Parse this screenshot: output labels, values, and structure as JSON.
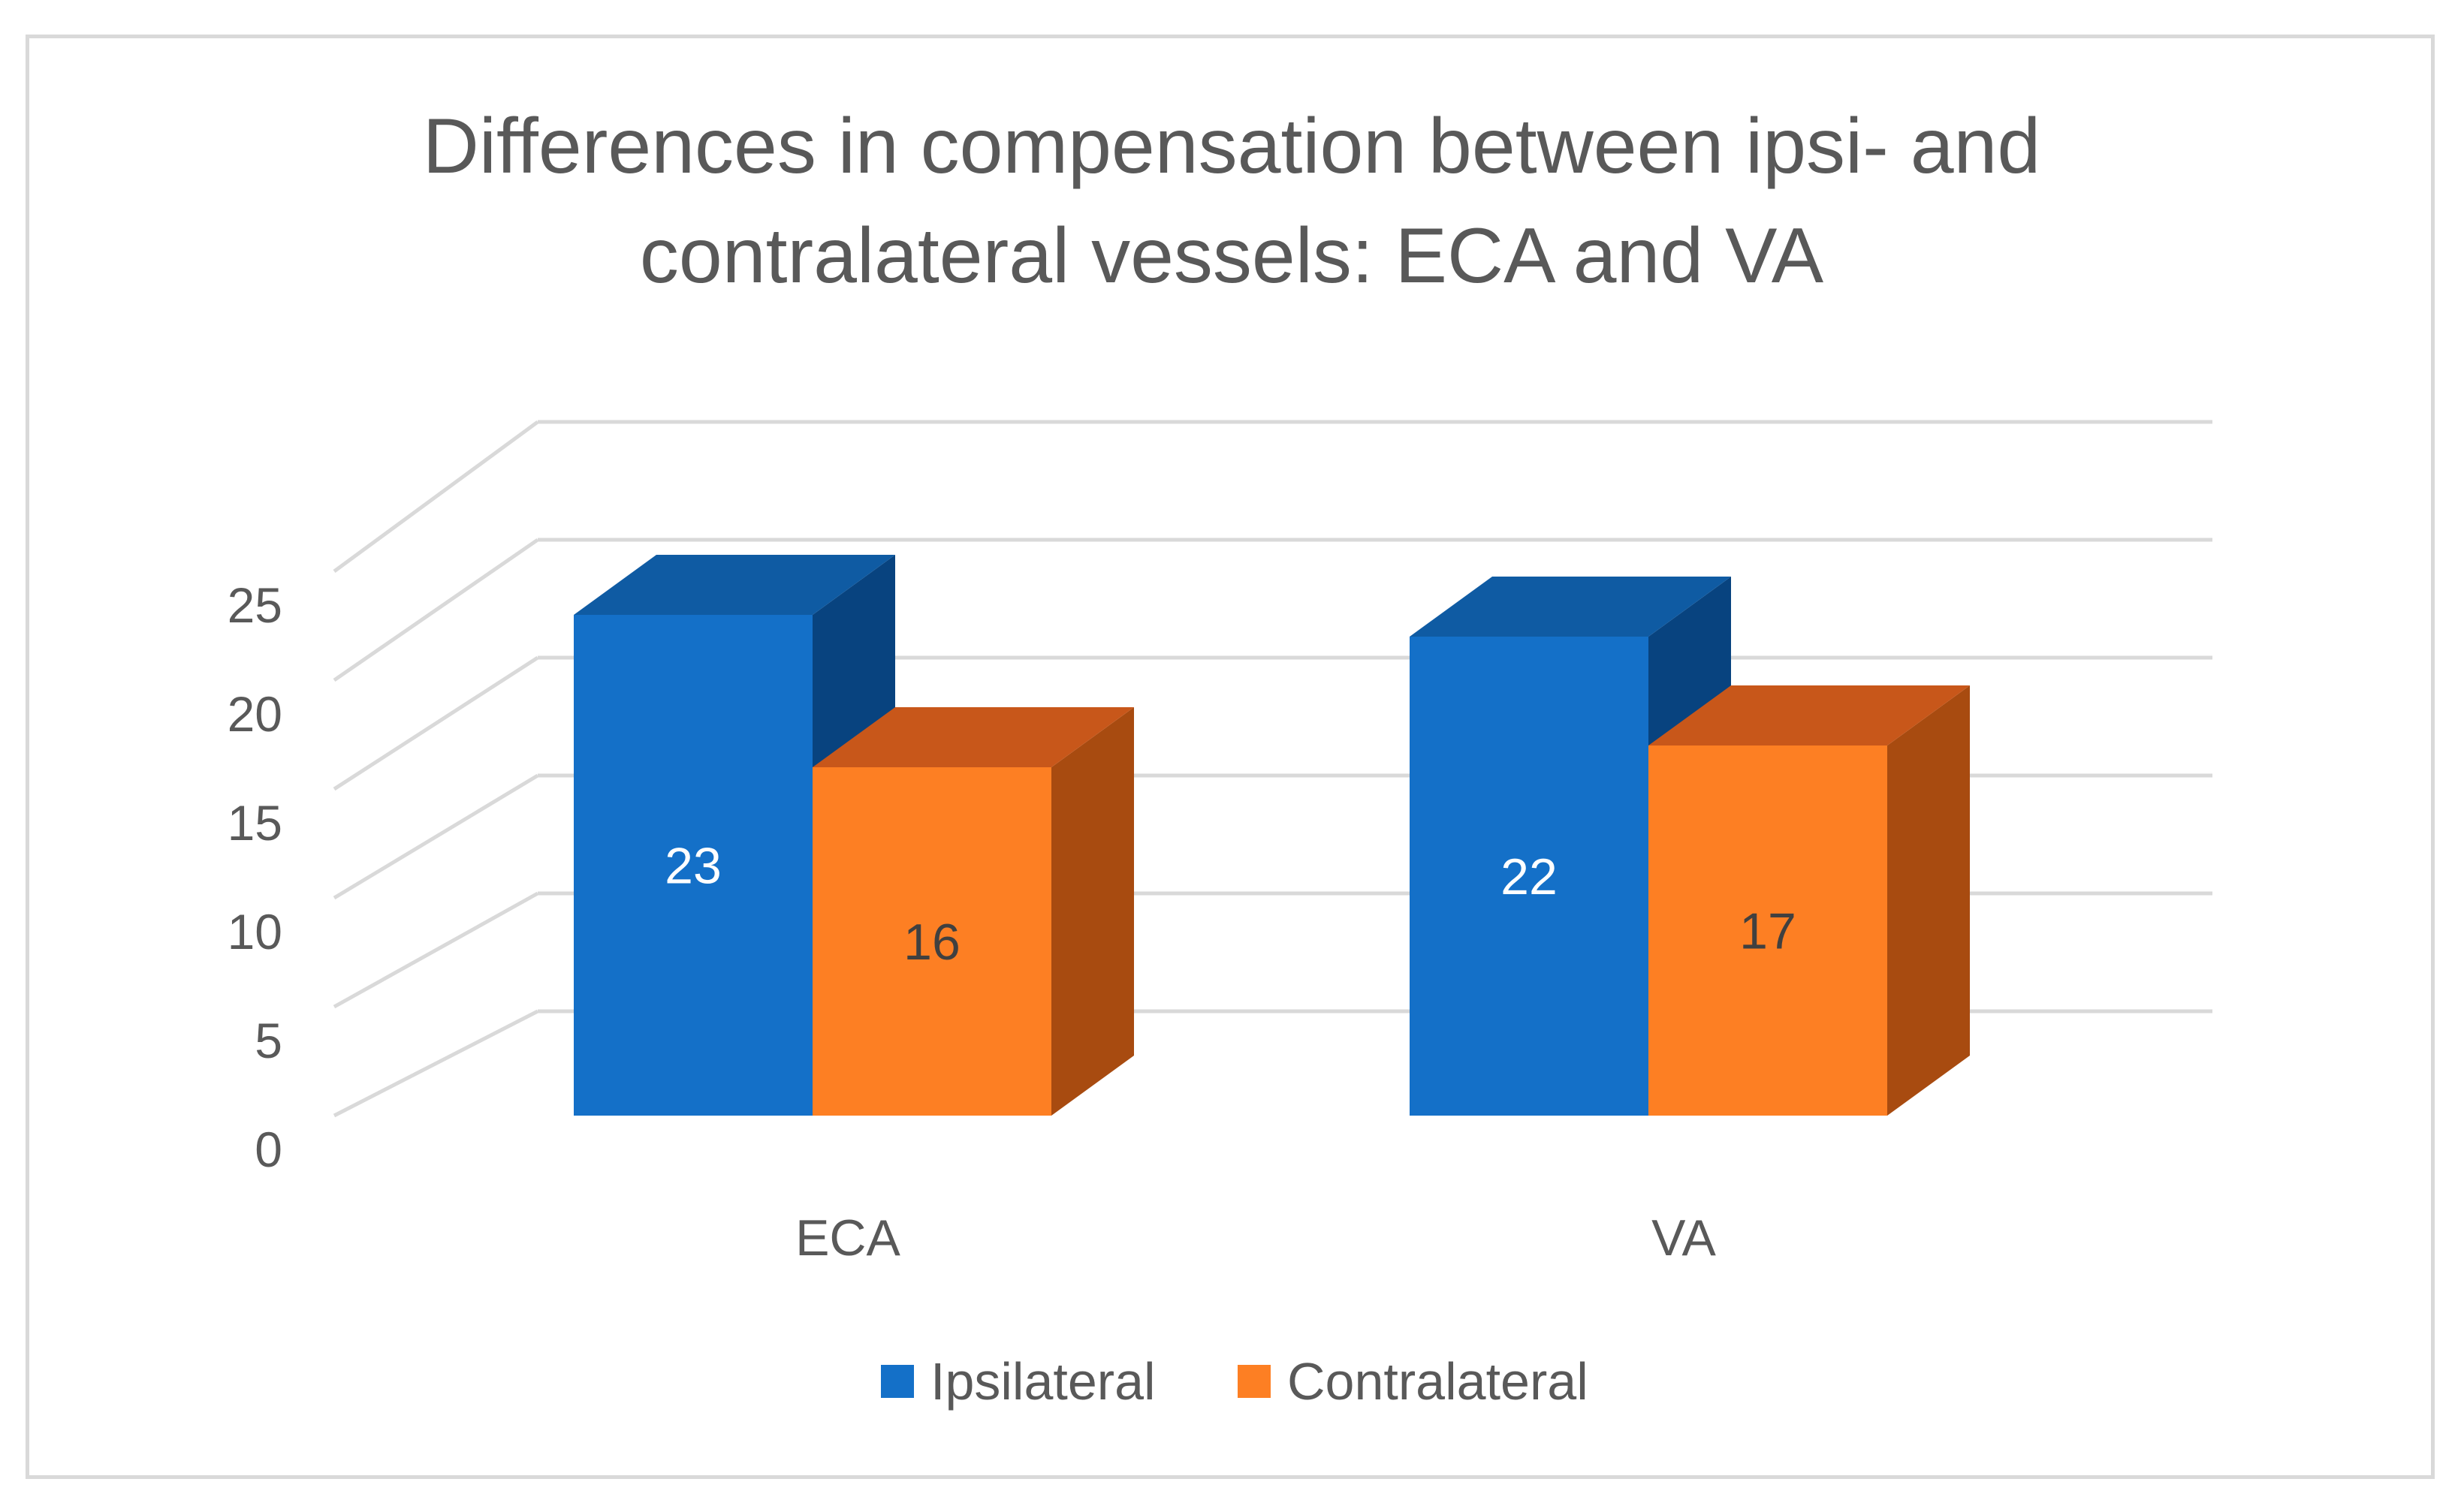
{
  "chart_data": {
    "type": "bar",
    "style": "3d-clustered-column",
    "title": "Differences in compensation between ipsi- and contralateral vessels: ECA and VA",
    "title_lines": [
      "Differences in compensation between ipsi- and",
      "contralateral vessels: ECA and VA"
    ],
    "categories": [
      "ECA",
      "VA"
    ],
    "series": [
      {
        "name": "Ipsilateral",
        "values": [
          23,
          22
        ],
        "color": "#1470c8",
        "top_color": "#0f5ba3",
        "side_color": "#08437f",
        "label_color": "#ffffff"
      },
      {
        "name": "Contralateral",
        "values": [
          16,
          17
        ],
        "color": "#fd7f23",
        "top_color": "#c8571a",
        "side_color": "#a84b10",
        "label_color": "#404040"
      }
    ],
    "yticks": [
      0,
      5,
      10,
      15,
      20,
      25
    ],
    "ylim": [
      0,
      25
    ],
    "xlabel": "",
    "ylabel": "",
    "grid": true,
    "legend_position": "bottom"
  }
}
